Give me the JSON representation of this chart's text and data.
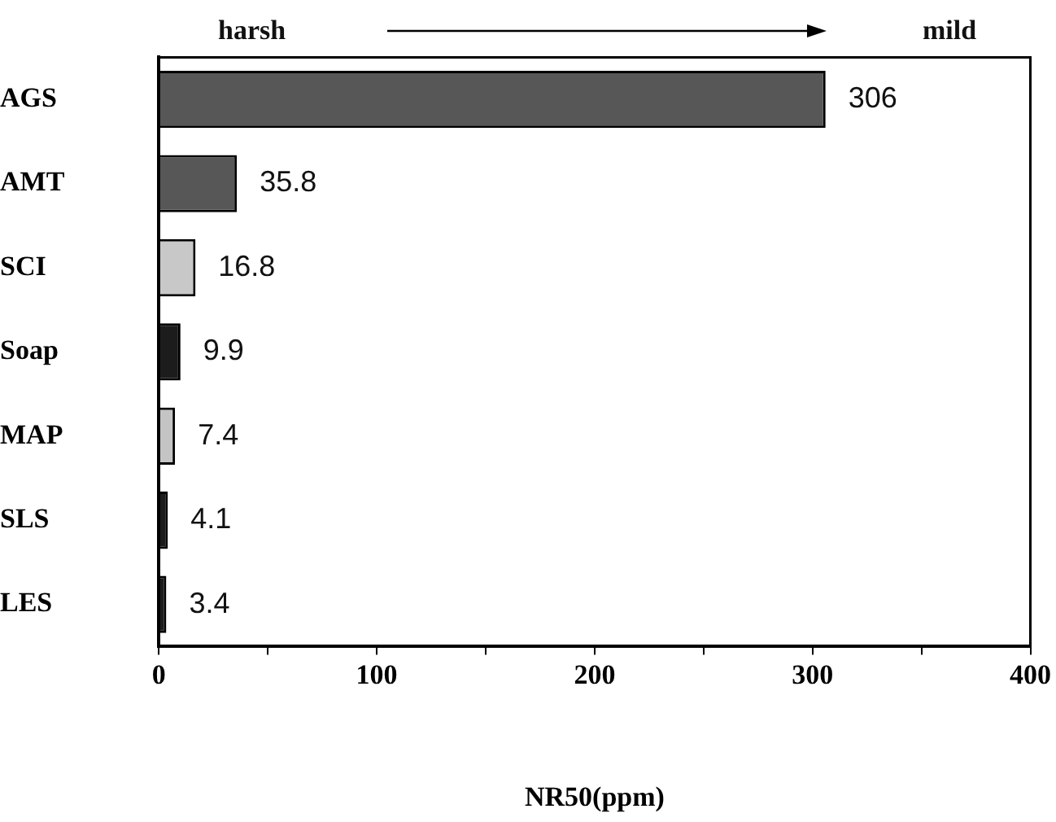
{
  "chart_data": {
    "type": "bar",
    "orientation": "horizontal",
    "xlabel": "NR50(ppm)",
    "annotations": [
      "harsh",
      "mild"
    ],
    "categories": [
      "AGS",
      "AMT",
      "SCI",
      "Soap",
      "MAP",
      "SLS",
      "LES"
    ],
    "values": [
      306,
      35.8,
      16.8,
      9.9,
      7.4,
      4.1,
      3.4
    ],
    "colors": [
      "#575757",
      "#575757",
      "#c8c8c8",
      "#1c1c1c",
      "#c4c4c4",
      "#1c1c1c",
      "#1c1c1c"
    ],
    "data_labels": true,
    "xlim": [
      0,
      400
    ],
    "xticks": [
      0,
      {
        "value": 50,
        "label": null
      },
      100,
      {
        "value": 150,
        "label": null
      },
      200,
      {
        "value": 250,
        "label": null
      },
      300,
      {
        "value": 350,
        "label": null
      },
      400
    ],
    "grid": false,
    "legend": false
  }
}
